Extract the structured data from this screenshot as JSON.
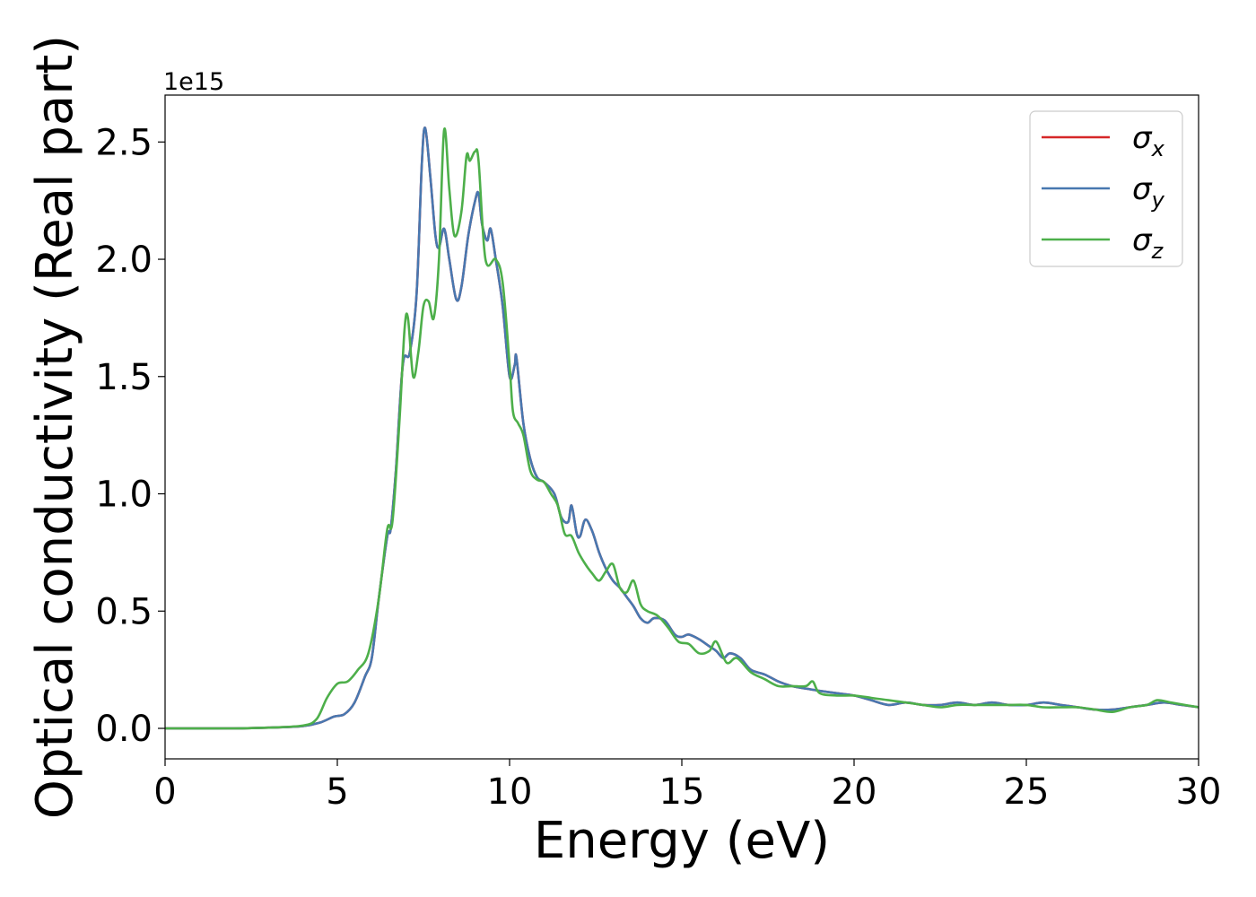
{
  "chart_data": {
    "type": "line",
    "title": "",
    "xlabel": "Energy (eV)",
    "ylabel": "Optical conductivity (Real part)",
    "y_offset_label": "1e15",
    "xlim": [
      0,
      30
    ],
    "ylim": [
      -0.13,
      2.7
    ],
    "x_ticks": [
      0,
      5,
      10,
      15,
      20,
      25,
      30
    ],
    "x_tick_labels": [
      "0",
      "5",
      "10",
      "15",
      "20",
      "25",
      "30"
    ],
    "y_ticks": [
      0.0,
      0.5,
      1.0,
      1.5,
      2.0,
      2.5
    ],
    "y_tick_labels": [
      "0.0",
      "0.5",
      "1.0",
      "1.5",
      "2.0",
      "2.5"
    ],
    "grid": false,
    "legend_position": "top-right",
    "series": [
      {
        "name": "σx",
        "symbol": "σ",
        "subscript": "x",
        "color": "#d62728",
        "points": [
          [
            0,
            0
          ],
          [
            2,
            0.0
          ],
          [
            3,
            0.003
          ],
          [
            4,
            0.01
          ],
          [
            4.5,
            0.025
          ],
          [
            4.9,
            0.05
          ],
          [
            5.2,
            0.06
          ],
          [
            5.5,
            0.11
          ],
          [
            5.8,
            0.22
          ],
          [
            6.0,
            0.3
          ],
          [
            6.2,
            0.55
          ],
          [
            6.45,
            0.82
          ],
          [
            6.55,
            0.85
          ],
          [
            6.7,
            1.1
          ],
          [
            6.9,
            1.55
          ],
          [
            7.1,
            1.6
          ],
          [
            7.3,
            1.85
          ],
          [
            7.45,
            2.4
          ],
          [
            7.55,
            2.56
          ],
          [
            7.7,
            2.35
          ],
          [
            7.85,
            2.1
          ],
          [
            7.95,
            2.05
          ],
          [
            8.1,
            2.13
          ],
          [
            8.25,
            2.0
          ],
          [
            8.45,
            1.83
          ],
          [
            8.6,
            1.88
          ],
          [
            8.8,
            2.1
          ],
          [
            9.0,
            2.25
          ],
          [
            9.1,
            2.28
          ],
          [
            9.2,
            2.15
          ],
          [
            9.35,
            2.08
          ],
          [
            9.45,
            2.13
          ],
          [
            9.6,
            2.0
          ],
          [
            9.8,
            1.8
          ],
          [
            10.0,
            1.5
          ],
          [
            10.15,
            1.55
          ],
          [
            10.2,
            1.58
          ],
          [
            10.4,
            1.3
          ],
          [
            10.6,
            1.15
          ],
          [
            10.8,
            1.07
          ],
          [
            11.0,
            1.05
          ],
          [
            11.3,
            1.0
          ],
          [
            11.5,
            0.9
          ],
          [
            11.7,
            0.88
          ],
          [
            11.8,
            0.95
          ],
          [
            11.95,
            0.83
          ],
          [
            12.05,
            0.82
          ],
          [
            12.2,
            0.89
          ],
          [
            12.4,
            0.84
          ],
          [
            12.6,
            0.75
          ],
          [
            12.8,
            0.68
          ],
          [
            13.0,
            0.63
          ],
          [
            13.2,
            0.6
          ],
          [
            13.4,
            0.56
          ],
          [
            13.6,
            0.52
          ],
          [
            13.8,
            0.47
          ],
          [
            14.0,
            0.45
          ],
          [
            14.2,
            0.47
          ],
          [
            14.5,
            0.46
          ],
          [
            14.8,
            0.4
          ],
          [
            15.0,
            0.39
          ],
          [
            15.2,
            0.4
          ],
          [
            15.5,
            0.38
          ],
          [
            15.8,
            0.35
          ],
          [
            16.0,
            0.33
          ],
          [
            16.2,
            0.3
          ],
          [
            16.4,
            0.32
          ],
          [
            16.7,
            0.3
          ],
          [
            17.0,
            0.25
          ],
          [
            17.4,
            0.23
          ],
          [
            17.8,
            0.2
          ],
          [
            18.2,
            0.18
          ],
          [
            18.6,
            0.17
          ],
          [
            19.0,
            0.16
          ],
          [
            19.5,
            0.15
          ],
          [
            20.0,
            0.14
          ],
          [
            20.5,
            0.12
          ],
          [
            21.0,
            0.1
          ],
          [
            21.5,
            0.11
          ],
          [
            22.0,
            0.1
          ],
          [
            22.5,
            0.1
          ],
          [
            23.0,
            0.11
          ],
          [
            23.5,
            0.1
          ],
          [
            24.0,
            0.11
          ],
          [
            24.5,
            0.1
          ],
          [
            25.0,
            0.1
          ],
          [
            25.5,
            0.11
          ],
          [
            26.0,
            0.1
          ],
          [
            26.5,
            0.09
          ],
          [
            27.0,
            0.08
          ],
          [
            27.5,
            0.08
          ],
          [
            28.0,
            0.09
          ],
          [
            28.5,
            0.1
          ],
          [
            29.0,
            0.11
          ],
          [
            29.5,
            0.1
          ],
          [
            30.0,
            0.09
          ]
        ]
      },
      {
        "name": "σy",
        "symbol": "σ",
        "subscript": "y",
        "color": "#4878b0",
        "points": [
          [
            0,
            0
          ],
          [
            2,
            0.0
          ],
          [
            3,
            0.003
          ],
          [
            4,
            0.01
          ],
          [
            4.5,
            0.025
          ],
          [
            4.9,
            0.05
          ],
          [
            5.2,
            0.06
          ],
          [
            5.5,
            0.11
          ],
          [
            5.8,
            0.22
          ],
          [
            6.0,
            0.3
          ],
          [
            6.2,
            0.55
          ],
          [
            6.45,
            0.82
          ],
          [
            6.55,
            0.85
          ],
          [
            6.7,
            1.1
          ],
          [
            6.9,
            1.55
          ],
          [
            7.1,
            1.6
          ],
          [
            7.3,
            1.85
          ],
          [
            7.45,
            2.4
          ],
          [
            7.55,
            2.56
          ],
          [
            7.7,
            2.35
          ],
          [
            7.85,
            2.1
          ],
          [
            7.95,
            2.05
          ],
          [
            8.1,
            2.13
          ],
          [
            8.25,
            2.0
          ],
          [
            8.45,
            1.83
          ],
          [
            8.6,
            1.88
          ],
          [
            8.8,
            2.1
          ],
          [
            9.0,
            2.25
          ],
          [
            9.1,
            2.28
          ],
          [
            9.2,
            2.15
          ],
          [
            9.35,
            2.08
          ],
          [
            9.45,
            2.13
          ],
          [
            9.6,
            2.0
          ],
          [
            9.8,
            1.8
          ],
          [
            10.0,
            1.5
          ],
          [
            10.15,
            1.55
          ],
          [
            10.2,
            1.58
          ],
          [
            10.4,
            1.3
          ],
          [
            10.6,
            1.15
          ],
          [
            10.8,
            1.07
          ],
          [
            11.0,
            1.05
          ],
          [
            11.3,
            1.0
          ],
          [
            11.5,
            0.9
          ],
          [
            11.7,
            0.88
          ],
          [
            11.8,
            0.95
          ],
          [
            11.95,
            0.83
          ],
          [
            12.05,
            0.82
          ],
          [
            12.2,
            0.89
          ],
          [
            12.4,
            0.84
          ],
          [
            12.6,
            0.75
          ],
          [
            12.8,
            0.68
          ],
          [
            13.0,
            0.63
          ],
          [
            13.2,
            0.6
          ],
          [
            13.4,
            0.56
          ],
          [
            13.6,
            0.52
          ],
          [
            13.8,
            0.47
          ],
          [
            14.0,
            0.45
          ],
          [
            14.2,
            0.47
          ],
          [
            14.5,
            0.46
          ],
          [
            14.8,
            0.4
          ],
          [
            15.0,
            0.39
          ],
          [
            15.2,
            0.4
          ],
          [
            15.5,
            0.38
          ],
          [
            15.8,
            0.35
          ],
          [
            16.0,
            0.33
          ],
          [
            16.2,
            0.3
          ],
          [
            16.4,
            0.32
          ],
          [
            16.7,
            0.3
          ],
          [
            17.0,
            0.25
          ],
          [
            17.4,
            0.23
          ],
          [
            17.8,
            0.2
          ],
          [
            18.2,
            0.18
          ],
          [
            18.6,
            0.17
          ],
          [
            19.0,
            0.16
          ],
          [
            19.5,
            0.15
          ],
          [
            20.0,
            0.14
          ],
          [
            20.5,
            0.12
          ],
          [
            21.0,
            0.1
          ],
          [
            21.5,
            0.11
          ],
          [
            22.0,
            0.1
          ],
          [
            22.5,
            0.1
          ],
          [
            23.0,
            0.11
          ],
          [
            23.5,
            0.1
          ],
          [
            24.0,
            0.11
          ],
          [
            24.5,
            0.1
          ],
          [
            25.0,
            0.1
          ],
          [
            25.5,
            0.11
          ],
          [
            26.0,
            0.1
          ],
          [
            26.5,
            0.09
          ],
          [
            27.0,
            0.08
          ],
          [
            27.5,
            0.08
          ],
          [
            28.0,
            0.09
          ],
          [
            28.5,
            0.1
          ],
          [
            29.0,
            0.11
          ],
          [
            29.5,
            0.1
          ],
          [
            30.0,
            0.09
          ]
        ]
      },
      {
        "name": "σz",
        "symbol": "σ",
        "subscript": "z",
        "color": "#4daf4a",
        "points": [
          [
            0,
            0
          ],
          [
            2,
            0.0
          ],
          [
            3,
            0.003
          ],
          [
            4,
            0.012
          ],
          [
            4.4,
            0.04
          ],
          [
            4.7,
            0.13
          ],
          [
            5.0,
            0.19
          ],
          [
            5.3,
            0.2
          ],
          [
            5.6,
            0.25
          ],
          [
            5.9,
            0.32
          ],
          [
            6.2,
            0.55
          ],
          [
            6.45,
            0.85
          ],
          [
            6.6,
            0.88
          ],
          [
            6.8,
            1.3
          ],
          [
            6.95,
            1.7
          ],
          [
            7.05,
            1.75
          ],
          [
            7.2,
            1.5
          ],
          [
            7.35,
            1.6
          ],
          [
            7.5,
            1.8
          ],
          [
            7.65,
            1.82
          ],
          [
            7.8,
            1.75
          ],
          [
            7.95,
            2.0
          ],
          [
            8.1,
            2.55
          ],
          [
            8.25,
            2.3
          ],
          [
            8.4,
            2.1
          ],
          [
            8.6,
            2.2
          ],
          [
            8.75,
            2.44
          ],
          [
            8.85,
            2.42
          ],
          [
            9.0,
            2.46
          ],
          [
            9.1,
            2.42
          ],
          [
            9.3,
            2.0
          ],
          [
            9.6,
            2.0
          ],
          [
            9.8,
            1.9
          ],
          [
            10.0,
            1.55
          ],
          [
            10.1,
            1.35
          ],
          [
            10.25,
            1.3
          ],
          [
            10.4,
            1.25
          ],
          [
            10.6,
            1.1
          ],
          [
            10.8,
            1.06
          ],
          [
            11.0,
            1.05
          ],
          [
            11.2,
            1.0
          ],
          [
            11.4,
            0.95
          ],
          [
            11.6,
            0.83
          ],
          [
            11.8,
            0.82
          ],
          [
            12.0,
            0.75
          ],
          [
            12.2,
            0.7
          ],
          [
            12.4,
            0.66
          ],
          [
            12.6,
            0.63
          ],
          [
            12.8,
            0.67
          ],
          [
            13.0,
            0.7
          ],
          [
            13.2,
            0.6
          ],
          [
            13.4,
            0.58
          ],
          [
            13.6,
            0.63
          ],
          [
            13.8,
            0.53
          ],
          [
            14.0,
            0.5
          ],
          [
            14.3,
            0.48
          ],
          [
            14.6,
            0.43
          ],
          [
            14.9,
            0.37
          ],
          [
            15.2,
            0.36
          ],
          [
            15.5,
            0.32
          ],
          [
            15.8,
            0.33
          ],
          [
            16.0,
            0.37
          ],
          [
            16.3,
            0.28
          ],
          [
            16.6,
            0.3
          ],
          [
            17.0,
            0.24
          ],
          [
            17.4,
            0.21
          ],
          [
            17.8,
            0.18
          ],
          [
            18.2,
            0.18
          ],
          [
            18.6,
            0.18
          ],
          [
            18.8,
            0.2
          ],
          [
            19.0,
            0.15
          ],
          [
            19.5,
            0.14
          ],
          [
            20.0,
            0.14
          ],
          [
            20.5,
            0.13
          ],
          [
            21.0,
            0.12
          ],
          [
            21.5,
            0.11
          ],
          [
            22.0,
            0.1
          ],
          [
            22.5,
            0.09
          ],
          [
            23.0,
            0.1
          ],
          [
            23.5,
            0.1
          ],
          [
            24.0,
            0.1
          ],
          [
            24.5,
            0.1
          ],
          [
            25.0,
            0.1
          ],
          [
            25.5,
            0.09
          ],
          [
            26.0,
            0.09
          ],
          [
            26.5,
            0.09
          ],
          [
            27.0,
            0.08
          ],
          [
            27.5,
            0.07
          ],
          [
            28.0,
            0.09
          ],
          [
            28.5,
            0.1
          ],
          [
            28.8,
            0.12
          ],
          [
            29.2,
            0.11
          ],
          [
            29.6,
            0.1
          ],
          [
            30.0,
            0.09
          ]
        ]
      }
    ]
  }
}
